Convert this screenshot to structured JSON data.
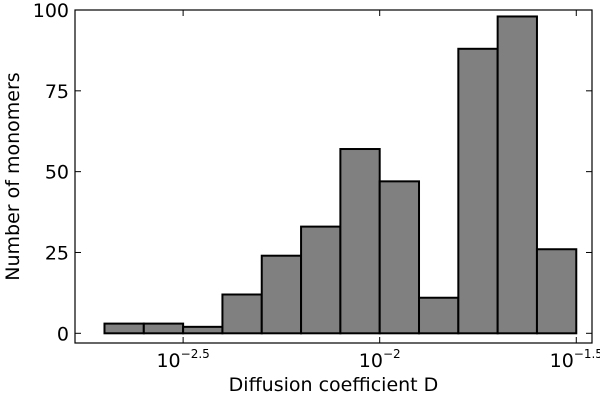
{
  "chart_data": {
    "type": "bar",
    "xlabel": "Diffusion coefficient D",
    "ylabel": "Number of monomers",
    "xscale": "log10",
    "xlim_log10": [
      -2.775,
      -1.46
    ],
    "ylim": [
      -3,
      100
    ],
    "grid": false,
    "legend": "none",
    "bar_color": "#808080",
    "edge_color": "#000000",
    "x_ticks": [
      {
        "log10": -2.5,
        "base": "10",
        "exponent": "−2.5"
      },
      {
        "log10": -2.0,
        "base": "10",
        "exponent": "−2"
      },
      {
        "log10": -1.5,
        "base": "10",
        "exponent": "−1.5"
      }
    ],
    "y_ticks": [
      0,
      25,
      50,
      75,
      100
    ],
    "bin_edges_log10": [
      -2.7,
      -2.6,
      -2.5,
      -2.4,
      -2.3,
      -2.2,
      -2.1,
      -2.0,
      -1.9,
      -1.8,
      -1.7,
      -1.6,
      -1.5
    ],
    "values": [
      3,
      3,
      2,
      12,
      24,
      33,
      57,
      47,
      11,
      88,
      98,
      26
    ]
  }
}
